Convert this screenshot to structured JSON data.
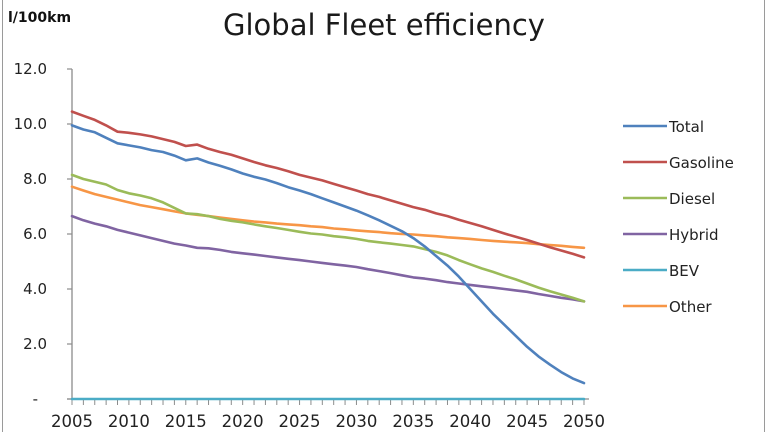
{
  "chart_data": {
    "type": "line",
    "title": "Global Fleet efficiency",
    "ylabel": "l/100km",
    "xlabel": "",
    "xlim": [
      2005,
      2050
    ],
    "ylim": [
      0,
      12
    ],
    "grid": false,
    "legend": "right",
    "x_tick_labels": [
      "2005",
      "2010",
      "2015",
      "2020",
      "2025",
      "2030",
      "2035",
      "2040",
      "2045",
      "2050"
    ],
    "y_tick_labels": [
      "-",
      "2.0",
      "4.0",
      "6.0",
      "8.0",
      "10.0",
      "12.0"
    ],
    "x": [
      2005,
      2006,
      2007,
      2008,
      2009,
      2010,
      2011,
      2012,
      2013,
      2014,
      2015,
      2016,
      2017,
      2018,
      2019,
      2020,
      2021,
      2022,
      2023,
      2024,
      2025,
      2026,
      2027,
      2028,
      2029,
      2030,
      2031,
      2032,
      2033,
      2034,
      2035,
      2036,
      2037,
      2038,
      2039,
      2040,
      2041,
      2042,
      2043,
      2044,
      2045,
      2046,
      2047,
      2048,
      2049,
      2050
    ],
    "series": [
      {
        "name": "Total",
        "color": "#4F81BD",
        "values": [
          9.95,
          9.8,
          9.7,
          9.5,
          9.3,
          9.22,
          9.15,
          9.05,
          8.98,
          8.85,
          8.68,
          8.75,
          8.6,
          8.48,
          8.35,
          8.2,
          8.08,
          7.98,
          7.85,
          7.7,
          7.58,
          7.45,
          7.3,
          7.15,
          7.0,
          6.85,
          6.68,
          6.5,
          6.3,
          6.1,
          5.85,
          5.55,
          5.2,
          4.85,
          4.45,
          4.0,
          3.55,
          3.1,
          2.7,
          2.3,
          1.9,
          1.55,
          1.25,
          0.98,
          0.75,
          0.58
        ]
      },
      {
        "name": "Gasoline",
        "color": "#C0504D",
        "values": [
          10.45,
          10.3,
          10.15,
          9.95,
          9.72,
          9.68,
          9.62,
          9.55,
          9.45,
          9.35,
          9.2,
          9.25,
          9.1,
          8.98,
          8.88,
          8.75,
          8.62,
          8.5,
          8.4,
          8.28,
          8.15,
          8.05,
          7.95,
          7.82,
          7.7,
          7.58,
          7.45,
          7.35,
          7.22,
          7.1,
          6.98,
          6.88,
          6.75,
          6.65,
          6.52,
          6.4,
          6.28,
          6.15,
          6.02,
          5.9,
          5.78,
          5.65,
          5.52,
          5.4,
          5.28,
          5.15
        ]
      },
      {
        "name": "Diesel",
        "color": "#9BBB59",
        "values": [
          8.15,
          8.0,
          7.9,
          7.8,
          7.6,
          7.48,
          7.4,
          7.3,
          7.15,
          6.95,
          6.75,
          6.72,
          6.65,
          6.55,
          6.48,
          6.42,
          6.35,
          6.28,
          6.22,
          6.15,
          6.08,
          6.02,
          5.98,
          5.92,
          5.88,
          5.82,
          5.75,
          5.7,
          5.65,
          5.6,
          5.55,
          5.45,
          5.35,
          5.22,
          5.05,
          4.9,
          4.75,
          4.62,
          4.48,
          4.35,
          4.2,
          4.05,
          3.92,
          3.8,
          3.68,
          3.55
        ]
      },
      {
        "name": "Hybrid",
        "color": "#8064A2",
        "values": [
          6.65,
          6.5,
          6.38,
          6.28,
          6.15,
          6.05,
          5.95,
          5.85,
          5.75,
          5.65,
          5.58,
          5.5,
          5.48,
          5.42,
          5.35,
          5.3,
          5.25,
          5.2,
          5.15,
          5.1,
          5.05,
          5.0,
          4.95,
          4.9,
          4.85,
          4.8,
          4.72,
          4.65,
          4.58,
          4.5,
          4.42,
          4.38,
          4.32,
          4.25,
          4.2,
          4.15,
          4.1,
          4.05,
          4.0,
          3.95,
          3.9,
          3.82,
          3.75,
          3.68,
          3.62,
          3.55
        ]
      },
      {
        "name": "BEV",
        "color": "#4BACC6",
        "values": [
          0,
          0,
          0,
          0,
          0,
          0,
          0,
          0,
          0,
          0,
          0,
          0,
          0,
          0,
          0,
          0,
          0,
          0,
          0,
          0,
          0,
          0,
          0,
          0,
          0,
          0,
          0,
          0,
          0,
          0,
          0,
          0,
          0,
          0,
          0,
          0,
          0,
          0,
          0,
          0,
          0,
          0,
          0,
          0,
          0,
          0
        ]
      },
      {
        "name": "Other",
        "color": "#F79646",
        "values": [
          7.72,
          7.58,
          7.45,
          7.35,
          7.25,
          7.15,
          7.05,
          6.98,
          6.9,
          6.82,
          6.75,
          6.7,
          6.65,
          6.6,
          6.55,
          6.5,
          6.45,
          6.42,
          6.38,
          6.35,
          6.32,
          6.28,
          6.25,
          6.2,
          6.17,
          6.13,
          6.1,
          6.07,
          6.03,
          6.0,
          5.98,
          5.95,
          5.92,
          5.88,
          5.85,
          5.82,
          5.78,
          5.75,
          5.72,
          5.7,
          5.67,
          5.63,
          5.6,
          5.57,
          5.53,
          5.5
        ]
      }
    ]
  }
}
